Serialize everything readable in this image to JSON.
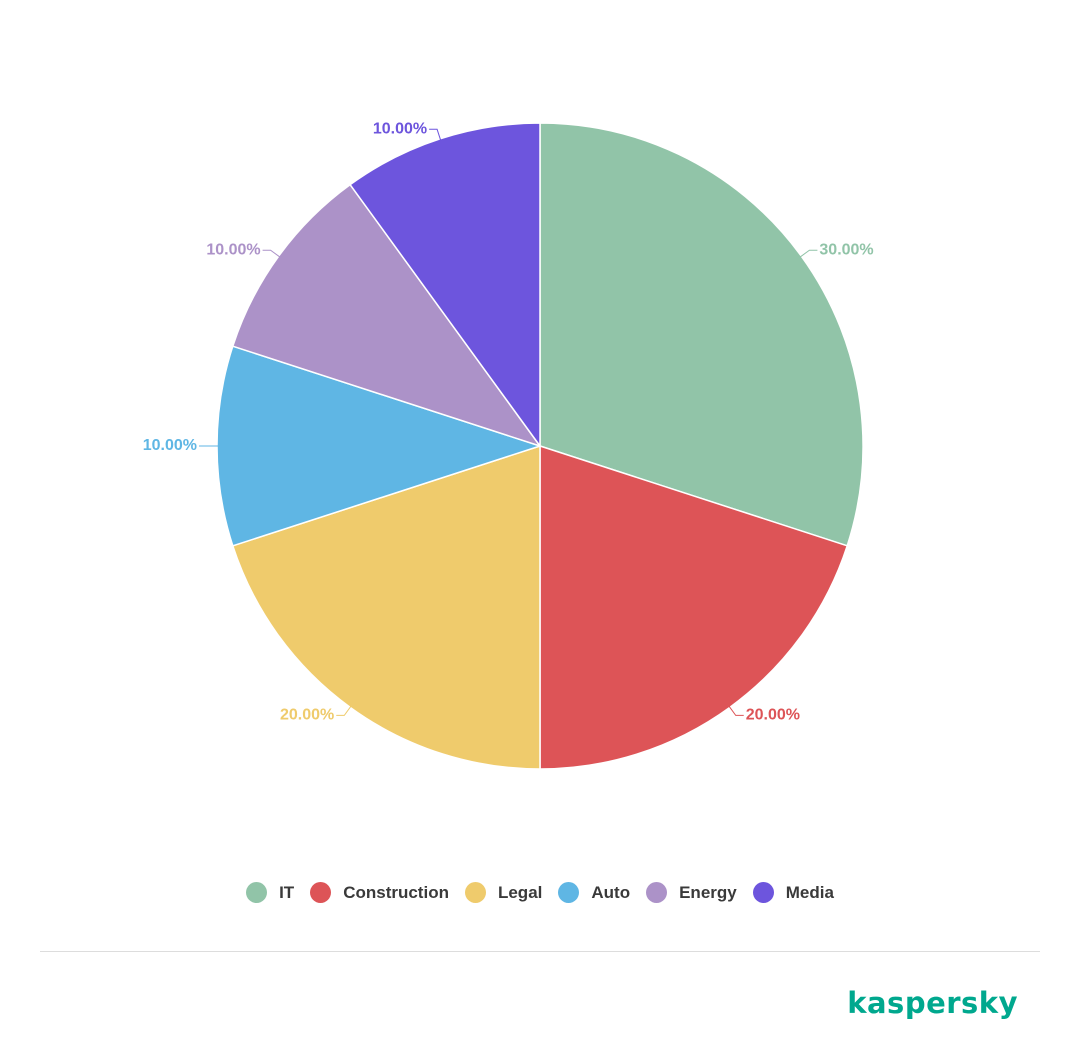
{
  "chart_data": {
    "type": "pie",
    "series": [
      {
        "name": "IT",
        "value": 30,
        "label": "30.00%",
        "color": "#91c4a8"
      },
      {
        "name": "Construction",
        "value": 20,
        "label": "20.00%",
        "color": "#dd5457"
      },
      {
        "name": "Legal",
        "value": 20,
        "label": "20.00%",
        "color": "#efcb6c"
      },
      {
        "name": "Auto",
        "value": 10,
        "label": "10.00%",
        "color": "#5fb6e4"
      },
      {
        "name": "Energy",
        "value": 10,
        "label": "10.00%",
        "color": "#ac92c8"
      },
      {
        "name": "Media",
        "value": 10,
        "label": "10.00%",
        "color": "#6d55dd"
      }
    ],
    "legend_position": "bottom",
    "start": "top",
    "direction": "clockwise"
  },
  "branding": {
    "logo_text": "kaspersky",
    "logo_color": "#00a88e"
  }
}
